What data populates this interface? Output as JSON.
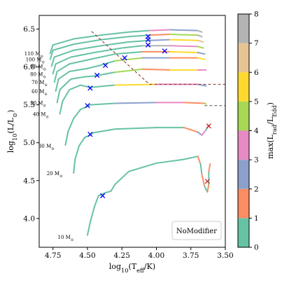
{
  "chart_data": {
    "type": "line",
    "xlabel": "log$_{10}$(T$_{\\rm eff}$/K)",
    "ylabel": "log$_{10}$(L/L$_{\\odot}$)",
    "xlim": [
      4.85,
      3.5
    ],
    "ylim": [
      3.62,
      6.68
    ],
    "x_ticks": [
      {
        "v": 4.75,
        "label": "4.75"
      },
      {
        "v": 4.5,
        "label": "4.50"
      },
      {
        "v": 4.25,
        "label": "4.25"
      },
      {
        "v": 4.0,
        "label": "4.00"
      },
      {
        "v": 3.75,
        "label": "3.75"
      },
      {
        "v": 3.5,
        "label": "3.50"
      }
    ],
    "y_ticks": [
      {
        "v": 4.0,
        "label": "4.0"
      },
      {
        "v": 4.5,
        "label": "4.5"
      },
      {
        "v": 5.0,
        "label": "5.0"
      },
      {
        "v": 5.5,
        "label": "5.5"
      },
      {
        "v": 6.0,
        "label": "6.0"
      },
      {
        "v": 6.5,
        "label": "6.5"
      }
    ],
    "legend_text": "NoModifier",
    "legend_placement": "lower-right",
    "grid": false,
    "colorbar": {
      "label": "max(L$_{rad}$/L$_{Edd}$)",
      "range": [
        0,
        8
      ],
      "ticks": [
        {
          "v": 0,
          "label": "0"
        },
        {
          "v": 1,
          "label": "1"
        },
        {
          "v": 2,
          "label": "2"
        },
        {
          "v": 3,
          "label": "3"
        },
        {
          "v": 4,
          "label": "4"
        },
        {
          "v": 5,
          "label": "5"
        },
        {
          "v": 6,
          "label": "6"
        },
        {
          "v": 7,
          "label": "7"
        },
        {
          "v": 8,
          "label": "8"
        }
      ],
      "colors": [
        "#66c2a5",
        "#fc8d62",
        "#8da0cb",
        "#e78ac3",
        "#a6d854",
        "#ffd92f",
        "#e5c494",
        "#b3b3b3"
      ]
    },
    "tracks": [
      {
        "mass_label": "10 M$_{\\odot}$",
        "label_x": 4.6,
        "label_y": 3.76,
        "points": [
          [
            4.5,
            3.78
          ],
          [
            4.48,
            3.95
          ],
          [
            4.45,
            4.15
          ],
          [
            4.42,
            4.3
          ],
          [
            4.37,
            4.34
          ],
          [
            4.33,
            4.36
          ],
          [
            4.3,
            4.45
          ],
          [
            4.2,
            4.62
          ],
          [
            4.0,
            4.73
          ],
          [
            3.8,
            4.78
          ],
          [
            3.7,
            4.82
          ],
          [
            3.68,
            4.72
          ],
          [
            3.67,
            4.58
          ],
          [
            3.65,
            4.42
          ],
          [
            3.63,
            4.35
          ],
          [
            3.62,
            4.45
          ],
          [
            3.62,
            4.62
          ],
          [
            3.61,
            4.72
          ]
        ]
      },
      {
        "mass_label": "20 M$_{\\odot}$",
        "label_x": 4.68,
        "label_y": 4.6,
        "points": [
          [
            4.6,
            4.6
          ],
          [
            4.59,
            4.78
          ],
          [
            4.56,
            4.96
          ],
          [
            4.52,
            5.07
          ],
          [
            4.48,
            5.1
          ],
          [
            4.46,
            5.13
          ],
          [
            4.3,
            5.18
          ],
          [
            4.0,
            5.2
          ],
          [
            3.8,
            5.2
          ],
          [
            3.7,
            5.14
          ],
          [
            3.67,
            5.1
          ],
          [
            3.64,
            5.17
          ],
          [
            3.62,
            5.23
          ]
        ]
      },
      {
        "mass_label": "30 M$_{\\odot}$",
        "label_x": 4.74,
        "label_y": 4.96,
        "points": [
          [
            4.66,
            4.97
          ],
          [
            4.64,
            5.15
          ],
          [
            4.6,
            5.32
          ],
          [
            4.55,
            5.44
          ],
          [
            4.5,
            5.48
          ],
          [
            4.48,
            5.5
          ],
          [
            4.3,
            5.52
          ],
          [
            4.0,
            5.53
          ],
          [
            3.8,
            5.53
          ],
          [
            3.65,
            5.52
          ],
          [
            3.64,
            5.51
          ]
        ]
      },
      {
        "mass_label": "40 M$_{\\odot}$",
        "label_x": 4.78,
        "label_y": 5.38,
        "points": [
          [
            4.7,
            5.38
          ],
          [
            4.68,
            5.55
          ],
          [
            4.63,
            5.7
          ],
          [
            4.55,
            5.76
          ],
          [
            4.48,
            5.73
          ],
          [
            4.3,
            5.76
          ],
          [
            4.0,
            5.77
          ],
          [
            3.7,
            5.77
          ],
          [
            3.64,
            5.75
          ]
        ]
      },
      {
        "mass_label": "50 M$_{\\odot}$",
        "label_x": 4.8,
        "label_y": 5.53,
        "points": [
          [
            4.72,
            5.53
          ],
          [
            4.7,
            5.7
          ],
          [
            4.62,
            5.84
          ],
          [
            4.52,
            5.87
          ],
          [
            4.45,
            5.88
          ],
          [
            4.3,
            5.93
          ],
          [
            4.1,
            5.97
          ],
          [
            3.9,
            5.96
          ],
          [
            3.7,
            5.96
          ],
          [
            3.64,
            5.96
          ]
        ]
      },
      {
        "mass_label": "60 M$_{\\odot}$",
        "label_x": 4.79,
        "label_y": 5.68,
        "points": [
          [
            4.73,
            5.68
          ],
          [
            4.71,
            5.84
          ],
          [
            4.63,
            5.94
          ],
          [
            4.5,
            5.98
          ],
          [
            4.41,
            6.02
          ],
          [
            4.3,
            6.08
          ],
          [
            4.1,
            6.12
          ],
          [
            3.9,
            6.12
          ],
          [
            3.7,
            6.12
          ],
          [
            3.65,
            6.1
          ]
        ]
      },
      {
        "mass_label": "70 M$_{\\odot}$",
        "label_x": 4.79,
        "label_y": 5.8,
        "points": [
          [
            4.74,
            5.8
          ],
          [
            4.72,
            5.94
          ],
          [
            4.63,
            6.04
          ],
          [
            4.48,
            6.1
          ],
          [
            4.3,
            6.17
          ],
          [
            4.1,
            6.2
          ],
          [
            3.9,
            6.2
          ],
          [
            3.7,
            6.19
          ],
          [
            3.65,
            6.17
          ]
        ]
      },
      {
        "mass_label": "80 M$_{\\odot}$",
        "label_x": 4.8,
        "label_y": 5.91,
        "points": [
          [
            4.75,
            5.91
          ],
          [
            4.73,
            6.04
          ],
          [
            4.62,
            6.13
          ],
          [
            4.45,
            6.19
          ],
          [
            4.25,
            6.25
          ],
          [
            4.1,
            6.28
          ],
          [
            3.9,
            6.28
          ],
          [
            3.7,
            6.27
          ],
          [
            3.66,
            6.25
          ]
        ]
      },
      {
        "mass_label": "90 M$_{\\odot}$",
        "label_x": 4.8,
        "label_y": 6.01,
        "points": [
          [
            4.76,
            6.01
          ],
          [
            4.74,
            6.13
          ],
          [
            4.6,
            6.22
          ],
          [
            4.4,
            6.28
          ],
          [
            4.2,
            6.33
          ],
          [
            4.05,
            6.35
          ],
          [
            3.9,
            6.36
          ],
          [
            3.7,
            6.35
          ],
          [
            3.66,
            6.33
          ]
        ]
      },
      {
        "mass_label": "100 M$_{\\odot}$",
        "label_x": 4.81,
        "label_y": 6.1,
        "points": [
          [
            4.77,
            6.1
          ],
          [
            4.75,
            6.22
          ],
          [
            4.6,
            6.3
          ],
          [
            4.4,
            6.36
          ],
          [
            4.2,
            6.4
          ],
          [
            4.05,
            6.42
          ],
          [
            3.9,
            6.43
          ],
          [
            3.7,
            6.42
          ],
          [
            3.67,
            6.4
          ]
        ]
      },
      {
        "mass_label": "110 M$_{\\odot}$",
        "label_x": 4.82,
        "label_y": 6.18,
        "points": [
          [
            4.77,
            6.18
          ],
          [
            4.75,
            6.29
          ],
          [
            4.6,
            6.37
          ],
          [
            4.4,
            6.42
          ],
          [
            4.2,
            6.46
          ],
          [
            4.05,
            6.48
          ],
          [
            3.9,
            6.49
          ],
          [
            3.7,
            6.48
          ],
          [
            3.67,
            6.46
          ]
        ]
      }
    ],
    "segment_colors": [
      [
        "#66c2a5",
        "#fc8d62",
        "#66c2a5",
        "#fc8d62",
        "#66c2a5"
      ],
      [
        "#66c2a5",
        "#fc8d62",
        "#8da0cb",
        "#e78ac3",
        "#66c2a5"
      ],
      [
        "#66c2a5",
        "#fc8d62",
        "#a6d854",
        "#8da0cb",
        "#e78ac3"
      ],
      [
        "#66c2a5",
        "#fc8d62",
        "#ffd92f",
        "#e78ac3",
        "#8da0cb"
      ],
      [
        "#66c2a5",
        "#e78ac3",
        "#a6d854",
        "#fc8d62",
        "#ffd92f"
      ],
      [
        "#66c2a5",
        "#ffd92f",
        "#a6d854",
        "#8da0cb",
        "#fc8d62"
      ],
      [
        "#66c2a5",
        "#e5c494",
        "#fc8d62",
        "#ffd92f",
        "#8da0cb"
      ],
      [
        "#66c2a5",
        "#fc8d62",
        "#b3b3b3",
        "#e78ac3",
        "#a6d854"
      ],
      [
        "#66c2a5",
        "#fc8d62",
        "#8da0cb",
        "#ffd92f",
        "#e5c494"
      ],
      [
        "#66c2a5",
        "#e78ac3",
        "#fc8d62",
        "#a6d854",
        "#b3b3b3"
      ],
      [
        "#66c2a5",
        "#fc8d62",
        "#e78ac3",
        "#8da0cb",
        "#b3b3b3"
      ]
    ],
    "markers_blue": [
      [
        4.39,
        4.3
      ],
      [
        4.48,
        5.11
      ],
      [
        4.5,
        5.49
      ],
      [
        4.48,
        5.72
      ],
      [
        4.43,
        5.89
      ],
      [
        4.37,
        6.02
      ],
      [
        4.23,
        6.12
      ],
      [
        4.06,
        6.29
      ],
      [
        4.06,
        6.36
      ],
      [
        4.06,
        6.4
      ],
      [
        3.94,
        6.21
      ]
    ],
    "markers_red": [
      [
        3.63,
        4.49
      ],
      [
        3.62,
        5.22
      ]
    ],
    "dashed_lines": [
      {
        "color": "#8b2a2a",
        "points": [
          [
            4.47,
            6.47
          ],
          [
            4.25,
            6.1
          ],
          [
            4.05,
            5.77
          ],
          [
            3.5,
            5.77
          ]
        ]
      },
      {
        "color": "#555555",
        "points": [
          [
            3.65,
            5.49
          ],
          [
            3.5,
            5.49
          ]
        ]
      }
    ]
  }
}
